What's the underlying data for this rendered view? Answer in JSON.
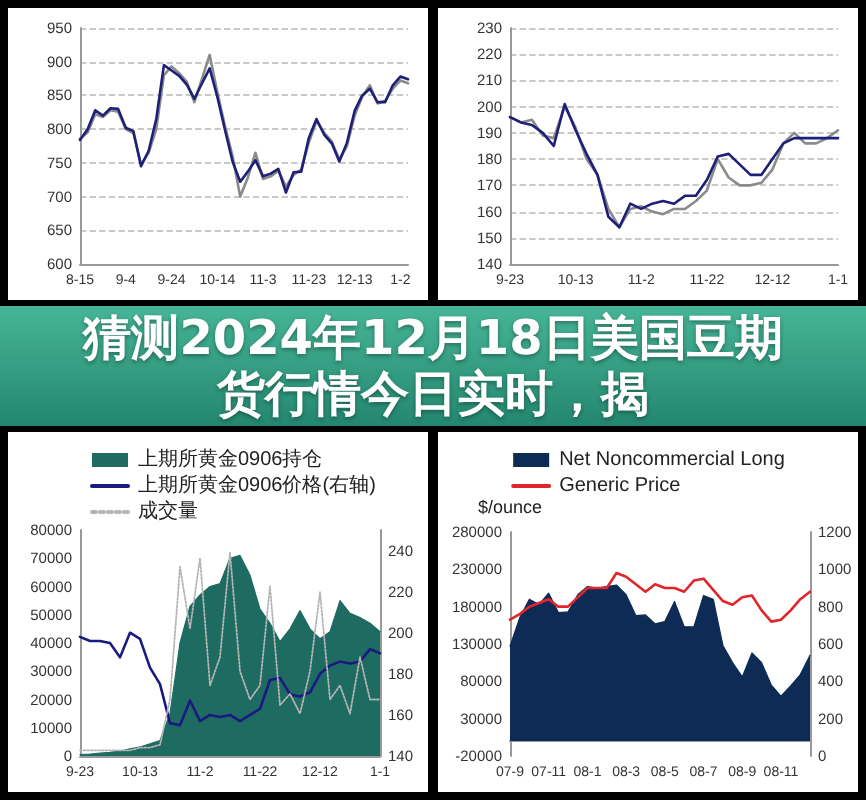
{
  "chart_data": [
    {
      "type": "line",
      "categories": [
        "8-15",
        null,
        null,
        null,
        null,
        null,
        "9-4",
        null,
        null,
        null,
        null,
        null,
        "9-24",
        null,
        null,
        null,
        null,
        null,
        "10-14",
        null,
        null,
        null,
        null,
        null,
        "11-3",
        null,
        null,
        null,
        null,
        null,
        "11-23",
        null,
        null,
        null,
        null,
        null,
        "12-13",
        null,
        null,
        null,
        null,
        null,
        "1-2",
        null
      ],
      "series": [
        {
          "color": "#8a8a8a",
          "values": [
            786,
            795,
            822,
            818,
            828,
            826,
            800,
            794,
            748,
            765,
            800,
            880,
            893,
            883,
            870,
            840,
            875,
            910,
            855,
            805,
            760,
            700,
            728,
            765,
            726,
            730,
            738,
            715,
            732,
            740,
            780,
            812,
            795,
            782,
            755,
            775,
            820,
            848,
            865,
            838,
            842,
            860,
            872,
            868
          ]
        },
        {
          "color": "#1f1f7a",
          "values": [
            784,
            800,
            828,
            820,
            831,
            830,
            802,
            797,
            745,
            768,
            815,
            895,
            887,
            879,
            866,
            845,
            868,
            890,
            848,
            799,
            752,
            722,
            737,
            754,
            730,
            734,
            741,
            706,
            736,
            737,
            787,
            815,
            792,
            779,
            752,
            780,
            827,
            850,
            860,
            840,
            840,
            865,
            878,
            874
          ]
        }
      ],
      "ylim": [
        600,
        950
      ],
      "yticks": [
        600,
        650,
        700,
        750,
        800,
        850,
        900,
        950
      ],
      "grid": "y",
      "marker": "none"
    },
    {
      "type": "line",
      "categories": [
        "9-23",
        null,
        null,
        null,
        null,
        null,
        "10-13",
        null,
        null,
        null,
        null,
        null,
        "11-2",
        null,
        null,
        null,
        null,
        null,
        "11-22",
        null,
        null,
        null,
        null,
        null,
        "12-12",
        null,
        null,
        null,
        null,
        null,
        "1-1"
      ],
      "series": [
        {
          "color": "#8a8a8a",
          "values": [
            196,
            194,
            195,
            189,
            188,
            200,
            192,
            180,
            174,
            161,
            154,
            161,
            162,
            160,
            159,
            161,
            161,
            164,
            168,
            180,
            173,
            170,
            170,
            171,
            176,
            186,
            190,
            186,
            186,
            188,
            191
          ]
        },
        {
          "color": "#1f1f7a",
          "values": [
            196,
            194,
            193,
            190,
            185,
            201,
            191,
            182,
            174,
            158,
            154,
            163,
            161,
            163,
            164,
            163,
            166,
            166,
            172,
            181,
            182,
            178,
            174,
            174,
            180,
            186,
            188,
            188,
            188,
            188,
            188
          ]
        }
      ],
      "ylim": [
        140,
        230
      ],
      "yticks": [
        140,
        150,
        160,
        170,
        180,
        190,
        200,
        210,
        220,
        230
      ],
      "grid": "y",
      "marker": "none"
    },
    {
      "type": "other",
      "title": "猜测2024年12月18日美国豆期货行情今日实时，揭"
    },
    {
      "type": "line",
      "categories": [
        "9-23",
        null,
        null,
        null,
        null,
        null,
        "10-13",
        null,
        null,
        null,
        null,
        null,
        "11-2",
        null,
        null,
        null,
        null,
        null,
        "11-22",
        null,
        null,
        null,
        null,
        null,
        "12-12",
        null,
        null,
        null,
        null,
        null,
        "1-1"
      ],
      "series": [
        {
          "name": "上期所黄金0906持仓",
          "type": "area",
          "color": "#1e6b62",
          "values": [
            500,
            700,
            1000,
            1300,
            1700,
            2500,
            3200,
            4300,
            5500,
            15000,
            40000,
            53000,
            57000,
            60000,
            61000,
            70000,
            71000,
            64000,
            52000,
            47000,
            40500,
            45000,
            51500,
            45000,
            41500,
            44000,
            55000,
            50500,
            49000,
            47000,
            44000
          ]
        },
        {
          "name": "上期所黄金0906价格(右轴)",
          "color": "#1a1a80",
          "axis": "y2",
          "values": [
            198,
            196,
            196,
            195,
            188,
            200,
            197,
            183,
            175,
            156,
            155,
            167,
            157,
            160,
            159,
            160,
            157,
            160,
            163,
            177,
            178,
            170,
            169,
            171,
            180,
            184,
            186,
            185,
            186,
            192,
            190
          ]
        },
        {
          "name": "成交量",
          "color": "#b4b4b4",
          "line_style": "dotted",
          "values": [
            2000,
            2000,
            2000,
            2000,
            2000,
            2000,
            3000,
            3000,
            4000,
            20000,
            67000,
            45000,
            70000,
            25000,
            35000,
            72000,
            30000,
            20000,
            25000,
            60000,
            18000,
            22000,
            15000,
            30000,
            58000,
            20000,
            25000,
            15000,
            35000,
            20000,
            20000
          ]
        }
      ],
      "ylim": [
        0,
        80000
      ],
      "yticks": [
        0,
        10000,
        20000,
        30000,
        40000,
        50000,
        60000,
        70000,
        80000
      ],
      "y2lim": [
        140,
        250
      ],
      "y2ticks": [
        140,
        160,
        180,
        200,
        220,
        240
      ],
      "legend": "top left",
      "marker": "none"
    },
    {
      "type": "line",
      "ylabel": "$/ounce",
      "categories": [
        "07-9",
        null,
        null,
        null,
        "07-11",
        null,
        null,
        null,
        "08-1",
        null,
        null,
        null,
        "08-3",
        null,
        null,
        null,
        "08-5",
        null,
        null,
        null,
        "08-7",
        null,
        null,
        null,
        "08-9",
        null,
        null,
        null,
        "08-11",
        null,
        null,
        null
      ],
      "series": [
        {
          "name": "Net Noncommercial Long",
          "type": "area",
          "color": "#0d2b55",
          "values": [
            127000,
            165000,
            190000,
            183000,
            198000,
            172000,
            173000,
            196000,
            207000,
            205000,
            207000,
            209000,
            196000,
            168000,
            169000,
            157000,
            160000,
            187000,
            153000,
            153000,
            195000,
            190000,
            128000,
            105000,
            86000,
            118000,
            105000,
            75000,
            60000,
            74000,
            89000,
            115000
          ]
        },
        {
          "name": "Generic Price",
          "color": "#e0262b",
          "axis": "y2",
          "values": [
            730,
            760,
            800,
            820,
            840,
            800,
            800,
            850,
            900,
            900,
            900,
            980,
            960,
            920,
            880,
            920,
            900,
            900,
            880,
            940,
            950,
            890,
            830,
            810,
            850,
            860,
            780,
            720,
            730,
            780,
            840,
            880
          ]
        }
      ],
      "ylim": [
        -20000,
        280000
      ],
      "yticks": [
        -20000,
        30000,
        80000,
        130000,
        180000,
        230000,
        280000
      ],
      "y2lim": [
        0,
        1200
      ],
      "y2ticks": [
        0,
        200,
        400,
        600,
        800,
        1000,
        1200
      ],
      "legend": "top",
      "marker": "none"
    }
  ]
}
